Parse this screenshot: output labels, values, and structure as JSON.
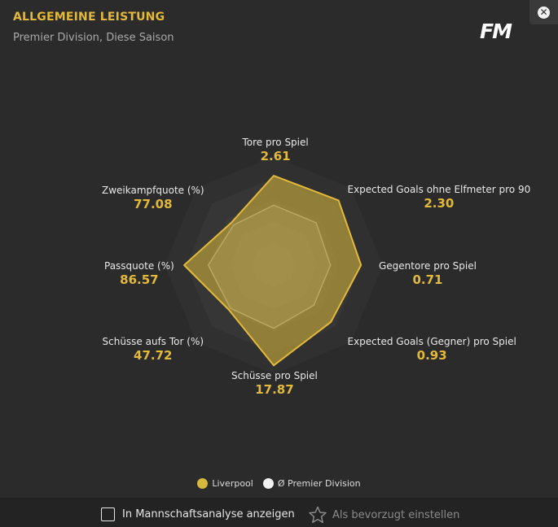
{
  "header": {
    "title": "ALLGEMEINE LEISTUNG",
    "subtitle": "Premier Division, Diese Saison",
    "logo_text": "FM",
    "close_icon": "close-icon"
  },
  "colors": {
    "accent": "#e3b93a",
    "team_fill": "#c9ad3c",
    "league_fill": "#f0f0f0"
  },
  "chart_data": {
    "type": "radar",
    "axes": [
      {
        "name": "Tore pro Spiel",
        "value": "2.61",
        "team": 0.82,
        "league": 0.55
      },
      {
        "name": "Expected Goals ohne Elfmeter pro 90",
        "value": "2.30",
        "team": 0.84,
        "league": 0.55
      },
      {
        "name": "Gegentore pro Spiel",
        "value": "0.71",
        "team": 0.8,
        "league": 0.52
      },
      {
        "name": "Expected Goals (Gegner) pro Spiel",
        "value": "0.93",
        "team": 0.74,
        "league": 0.52
      },
      {
        "name": "Schüsse pro Spiel",
        "value": "17.87",
        "team": 0.92,
        "league": 0.58
      },
      {
        "name": "Schüsse aufs Tor (%)",
        "value": "47.72",
        "team": 0.58,
        "league": 0.56
      },
      {
        "name": "Passquote (%)",
        "value": "86.57",
        "team": 0.82,
        "league": 0.6
      },
      {
        "name": "Zweikampfquote (%)",
        "value": "77.08",
        "team": 0.55,
        "league": 0.52
      }
    ],
    "series": [
      {
        "name": "Liverpool",
        "key": "team"
      },
      {
        "name": "Ø Premier Division",
        "key": "league"
      }
    ],
    "rings": 5
  },
  "legend": {
    "team": "Liverpool",
    "league": "Ø Premier Division"
  },
  "footer": {
    "checkbox_label": "In Mannschaftsanalyse anzeigen",
    "favorite_label": "Als bevorzugt einstellen",
    "favorite_icon": "star-icon"
  }
}
